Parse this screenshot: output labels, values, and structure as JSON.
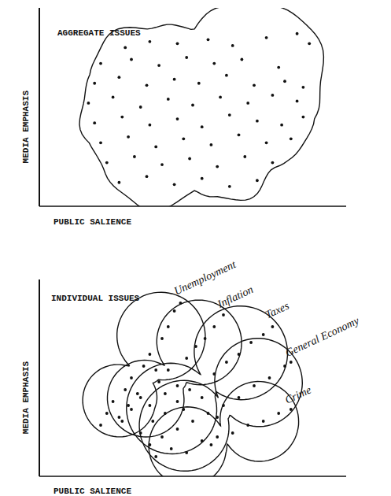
{
  "chart_data": [
    {
      "type": "scatter",
      "title": "AGGREGATE ISSUES",
      "x_label": "PUBLIC SALIENCE",
      "y_label": "MEDIA EMPHASIS",
      "xlim": [
        0,
        100
      ],
      "ylim": [
        0,
        100
      ],
      "tick_labels": false,
      "color": "#111111",
      "x": [
        28,
        36,
        45,
        55,
        63,
        74,
        84,
        88,
        20,
        30,
        39,
        48,
        57,
        66,
        78,
        18,
        26,
        35,
        44,
        52,
        61,
        70,
        80,
        86,
        16,
        24,
        33,
        42,
        50,
        59,
        68,
        76,
        84,
        18,
        27,
        36,
        45,
        53,
        62,
        71,
        79,
        86,
        20,
        29,
        38,
        47,
        56,
        65,
        74,
        82,
        22,
        31,
        40,
        49,
        58,
        67,
        76,
        26,
        35,
        44,
        53,
        62,
        71
      ],
      "values": [
        80,
        83,
        82,
        84,
        81,
        85,
        87,
        82,
        72,
        74,
        71,
        75,
        72,
        74,
        70,
        62,
        65,
        61,
        64,
        62,
        66,
        61,
        63,
        60,
        52,
        55,
        50,
        54,
        51,
        55,
        52,
        56,
        53,
        42,
        45,
        41,
        44,
        40,
        46,
        43,
        41,
        45,
        32,
        35,
        30,
        34,
        31,
        36,
        32,
        34,
        22,
        25,
        21,
        24,
        20,
        25,
        22,
        12,
        15,
        11,
        14,
        10,
        13
      ]
    },
    {
      "type": "scatter",
      "title": "INDIVIDUAL ISSUES",
      "x_label": "PUBLIC SALIENCE",
      "y_label": "MEDIA EMPHASIS",
      "xlim": [
        0,
        100
      ],
      "ylim": [
        0,
        100
      ],
      "tick_labels": false,
      "series": [
        {
          "name": "Unemployment",
          "color": "#111111",
          "x": [
            20,
            22,
            24,
            26,
            28,
            30,
            32,
            34,
            36,
            38,
            40,
            42,
            44,
            46,
            29
          ],
          "values": [
            26,
            32,
            38,
            30,
            44,
            50,
            42,
            56,
            62,
            54,
            70,
            76,
            84,
            88,
            36
          ]
        },
        {
          "name": "Inflation",
          "color": "#111111",
          "x": [
            27,
            30,
            33,
            36,
            39,
            42,
            45,
            48,
            51,
            54,
            57,
            60,
            41
          ],
          "values": [
            28,
            34,
            40,
            36,
            48,
            54,
            46,
            60,
            66,
            70,
            76,
            82,
            42
          ]
        },
        {
          "name": "Taxes",
          "color": "#111111",
          "x": [
            33,
            37,
            41,
            45,
            49,
            53,
            57,
            61,
            65,
            69,
            73,
            76,
            47
          ],
          "values": [
            22,
            28,
            32,
            38,
            44,
            40,
            52,
            58,
            62,
            68,
            72,
            76,
            34
          ]
        },
        {
          "name": "General Economy",
          "color": "#111111",
          "x": [
            36,
            40,
            45,
            50,
            55,
            60,
            65,
            70,
            75,
            80,
            82,
            58
          ],
          "values": [
            16,
            20,
            24,
            28,
            32,
            36,
            40,
            46,
            50,
            56,
            58,
            30
          ]
        },
        {
          "name": "Crime",
          "color": "#111111",
          "x": [
            38,
            43,
            48,
            53,
            58,
            63,
            68,
            73,
            78,
            82,
            56
          ],
          "values": [
            10,
            14,
            12,
            18,
            20,
            22,
            26,
            28,
            32,
            34,
            16
          ]
        }
      ]
    }
  ]
}
